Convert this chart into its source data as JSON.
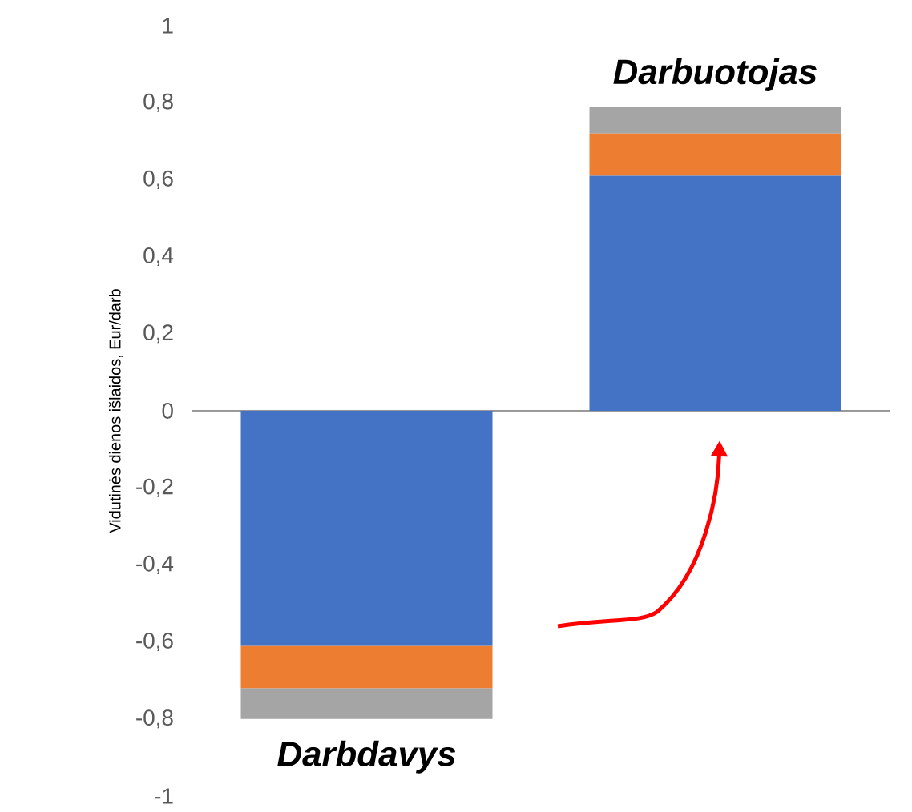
{
  "chart_data": {
    "type": "bar",
    "stacked": true,
    "ylabel": "Vidutinės dienos išlaidos, Eur/darb",
    "categories": [
      null,
      null
    ],
    "series": [
      {
        "color": "#4472c4",
        "values": [
          -0.61,
          0.61
        ]
      },
      {
        "color": "#ed7d31",
        "values": [
          -0.11,
          0.11
        ]
      },
      {
        "color": "#a5a5a5",
        "values": [
          -0.08,
          0.07
        ]
      }
    ],
    "ylim": [
      -1,
      1
    ],
    "yticks": [
      {
        "value": -1,
        "label": "-1"
      },
      {
        "value": -0.8,
        "label": "-0,8"
      },
      {
        "value": -0.6,
        "label": "-0,6"
      },
      {
        "value": -0.4,
        "label": "-0,4"
      },
      {
        "value": -0.2,
        "label": "-0,2"
      },
      {
        "value": 0,
        "label": "0"
      },
      {
        "value": 0.2,
        "label": "0,2"
      },
      {
        "value": 0.4,
        "label": "0,4"
      },
      {
        "value": 0.6,
        "label": "0,6"
      },
      {
        "value": 0.8,
        "label": "0,8"
      },
      {
        "value": 1,
        "label": "1"
      }
    ],
    "annotations": [
      "Darbdavys",
      "Darbuotojas"
    ]
  }
}
